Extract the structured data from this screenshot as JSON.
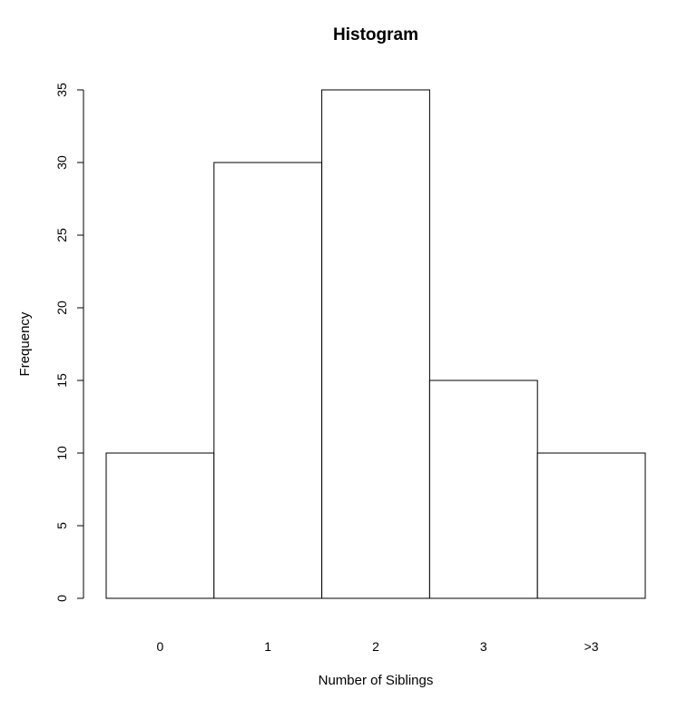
{
  "chart_data": {
    "type": "bar",
    "title": "Histogram",
    "xlabel": "Number of Siblings",
    "ylabel": "Frequency",
    "categories": [
      "0",
      "1",
      "2",
      "3",
      ">3"
    ],
    "values": [
      10,
      30,
      35,
      15,
      10
    ],
    "ylim": [
      0,
      35
    ],
    "yticks": [
      "0",
      "5",
      "10",
      "15",
      "20",
      "25",
      "30",
      "35"
    ],
    "grid": false,
    "bar_fill": "#ffffff",
    "bar_stroke": "#000000"
  }
}
